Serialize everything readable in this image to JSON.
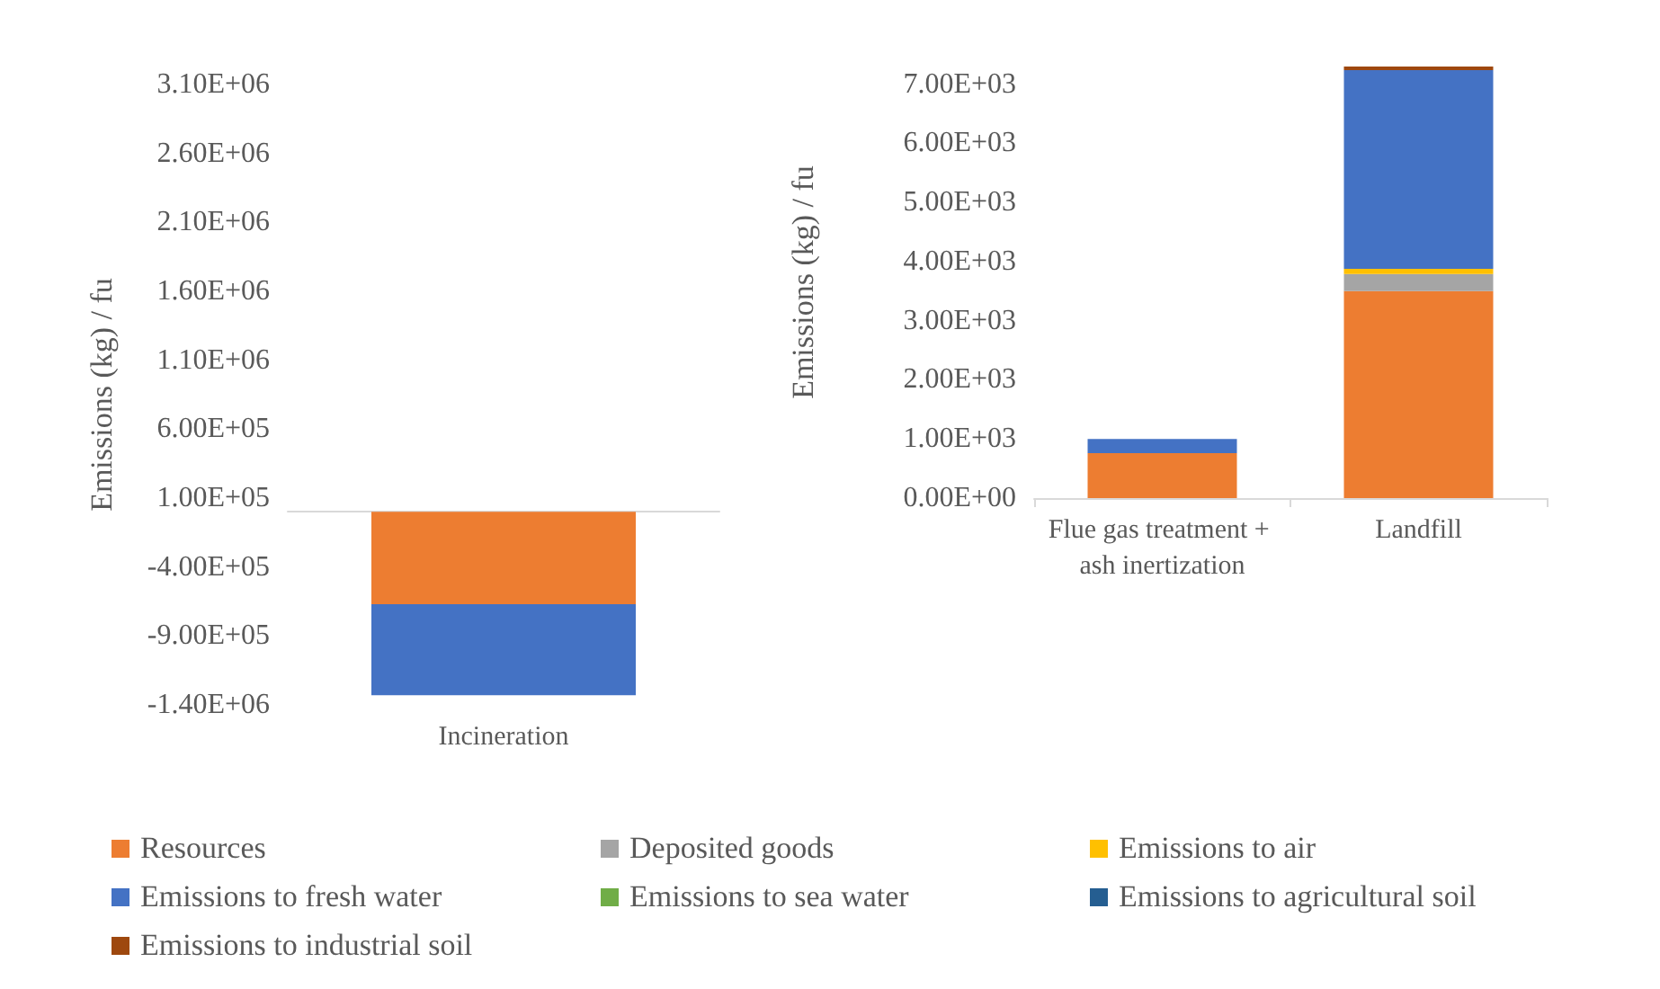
{
  "chart_data": [
    {
      "type": "bar",
      "stacked": true,
      "ylabel": "Emissions (kg) / fu",
      "categories": [
        "Incineration"
      ],
      "legend": "bottom",
      "grid": false,
      "ylim": [
        -1400000,
        3100000
      ],
      "yticks": [
        {
          "value": -1400000,
          "label": "-1.40E+06"
        },
        {
          "value": -900000,
          "label": "-9.00E+05"
        },
        {
          "value": -400000,
          "label": "-4.00E+05"
        },
        {
          "value": 100000,
          "label": "1.00E+05"
        },
        {
          "value": 600000,
          "label": "6.00E+05"
        },
        {
          "value": 1100000,
          "label": "1.10E+06"
        },
        {
          "value": 1600000,
          "label": "1.60E+06"
        },
        {
          "value": 2100000,
          "label": "2.10E+06"
        },
        {
          "value": 2600000,
          "label": "2.60E+06"
        },
        {
          "value": 3100000,
          "label": "3.10E+06"
        }
      ],
      "series": [
        {
          "name": "Resources",
          "color": "#ed7d31",
          "values": [
            -670000
          ]
        },
        {
          "name": "Deposited goods",
          "color": "#a5a5a5",
          "values": [
            0
          ]
        },
        {
          "name": "Emissions to air",
          "color": "#ffc000",
          "values": [
            0
          ]
        },
        {
          "name": "Emissions to fresh water",
          "color": "#4472c4",
          "values": [
            -660000
          ]
        },
        {
          "name": "Emissions to sea water",
          "color": "#70ad47",
          "values": [
            0
          ]
        },
        {
          "name": "Emissions to agricultural soil",
          "color": "#255e91",
          "values": [
            0
          ]
        },
        {
          "name": "Emissions to industrial soil",
          "color": "#9e480e",
          "values": [
            0
          ]
        }
      ]
    },
    {
      "type": "bar",
      "stacked": true,
      "ylabel": "Emissions (kg) / fu",
      "categories": [
        "Flue gas treatment + ash inertization",
        "Landfill"
      ],
      "grid": false,
      "ylim": [
        0,
        7300
      ],
      "yticks": [
        {
          "value": 0,
          "label": "0.00E+00"
        },
        {
          "value": 1000,
          "label": "1.00E+03"
        },
        {
          "value": 2000,
          "label": "2.00E+03"
        },
        {
          "value": 3000,
          "label": "3.00E+03"
        },
        {
          "value": 4000,
          "label": "4.00E+03"
        },
        {
          "value": 5000,
          "label": "5.00E+03"
        },
        {
          "value": 6000,
          "label": "6.00E+03"
        },
        {
          "value": 7000,
          "label": "7.00E+03"
        }
      ],
      "series": [
        {
          "color": "#ed7d31",
          "values": [
            760,
            3500
          ]
        },
        {
          "color": "#a5a5a5",
          "values": [
            0,
            290
          ]
        },
        {
          "color": "#ffc000",
          "values": [
            0,
            90
          ]
        },
        {
          "color": "#4472c4",
          "values": [
            240,
            3360
          ]
        },
        {
          "color": "#70ad47",
          "values": [
            0,
            0
          ]
        },
        {
          "color": "#255e91",
          "values": [
            0,
            0
          ]
        },
        {
          "color": "#9e480e",
          "values": [
            0,
            60
          ]
        }
      ]
    }
  ]
}
